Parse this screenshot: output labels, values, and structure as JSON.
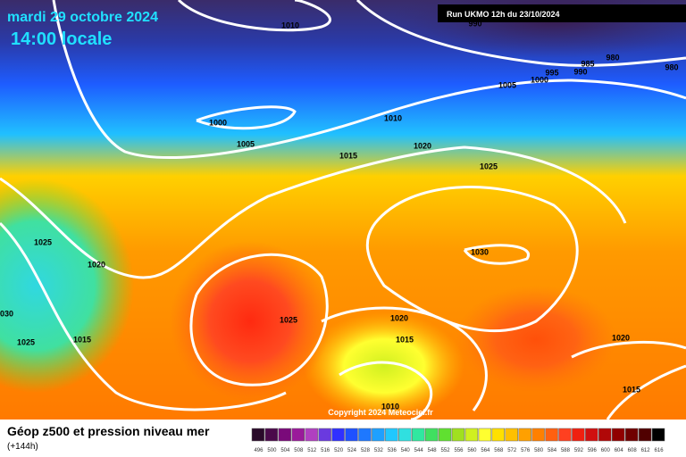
{
  "header": {
    "date": "mardi 29 octobre 2024",
    "time": "14:00 locale",
    "run": "Run UKMO 12h du 23/10/2024"
  },
  "isobars": [
    1010,
    990,
    980,
    985,
    990,
    995,
    1000,
    980,
    1005,
    1000,
    1010,
    1005,
    1020,
    1015,
    1025,
    1025,
    1020,
    1030,
    1030,
    1025,
    1020,
    1025,
    1015,
    1015,
    1020,
    1010,
    1015
  ],
  "copyright": "Copyright 2024 Meteociel.fr",
  "footer": {
    "title": "Géop z500 et pression niveau mer",
    "lead": "(+144h)"
  },
  "scale": {
    "values": [
      496,
      500,
      504,
      508,
      512,
      516,
      520,
      524,
      528,
      532,
      536,
      540,
      544,
      548,
      552,
      556,
      560,
      564,
      568,
      572,
      576,
      580,
      584,
      588,
      592,
      596,
      600,
      604,
      608,
      612,
      616
    ],
    "colors": [
      "#2a0a2a",
      "#4b0a4b",
      "#7a0a7a",
      "#9a1a9a",
      "#b040c0",
      "#6a3adf",
      "#3030ff",
      "#1e50ff",
      "#1e78ff",
      "#1ea0ff",
      "#20c8ff",
      "#30e0e0",
      "#30e8a0",
      "#40e060",
      "#60e030",
      "#a0e020",
      "#d0f020",
      "#ffff30",
      "#ffe000",
      "#ffc000",
      "#ffa000",
      "#ff8000",
      "#ff6010",
      "#ff4020",
      "#f02010",
      "#d01010",
      "#b00808",
      "#900000",
      "#700000",
      "#500000",
      "#000000"
    ]
  }
}
